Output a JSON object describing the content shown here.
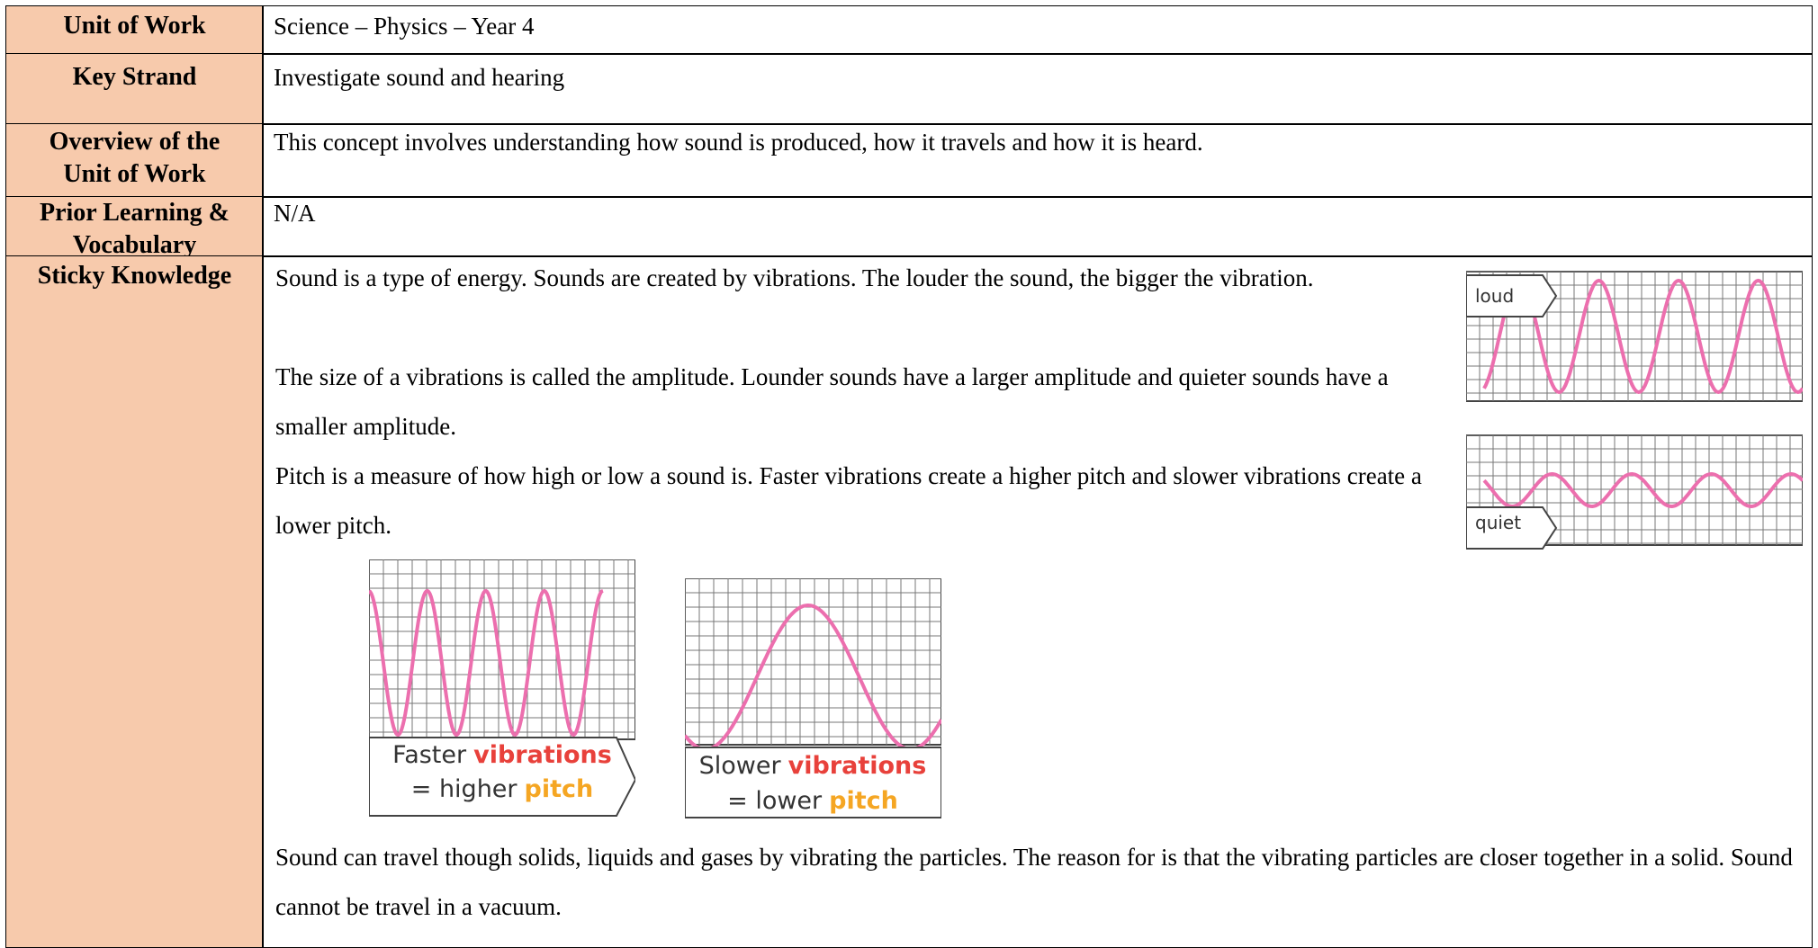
{
  "table": {
    "rows": [
      {
        "label": "Unit of Work",
        "content": "Science – Physics – Year 4"
      },
      {
        "label": "Key Strand",
        "content": "Investigate sound and hearing"
      },
      {
        "label": "Overview of the Unit of Work",
        "content": "This concept involves understanding how sound is produced, how it travels and how it is heard."
      },
      {
        "label": "Prior Learning & Vocabulary",
        "content": "N/A"
      },
      {
        "label": "Sticky Knowledge",
        "paragraphs": [
          "Sound is a type of energy. Sounds are created by vibrations. The louder the sound, the bigger the vibration.",
          "The size of a vibrations is called the amplitude. Lounder sounds have a larger amplitude and quieter sounds have a smaller amplitude.",
          "Pitch is a measure of how high or low a sound is. Faster vibrations create a higher pitch and slower vibrations create a lower pitch."
        ],
        "closing": "Sound can travel though solids, liquids and gases by vibrating the particles. The reason for is that the vibrating particles are closer together in a solid. Sound cannot be travel in a vacuum.",
        "figures": {
          "amplitude": {
            "loud": "loud",
            "quiet": "quiet"
          },
          "faster": {
            "line1": [
              "Faster",
              "vibrations"
            ],
            "line2": [
              "= higher",
              "pitch"
            ]
          },
          "slower": {
            "line1": [
              "Slower",
              "vibrations"
            ],
            "line2": [
              "= lower",
              "pitch"
            ]
          }
        }
      }
    ]
  }
}
